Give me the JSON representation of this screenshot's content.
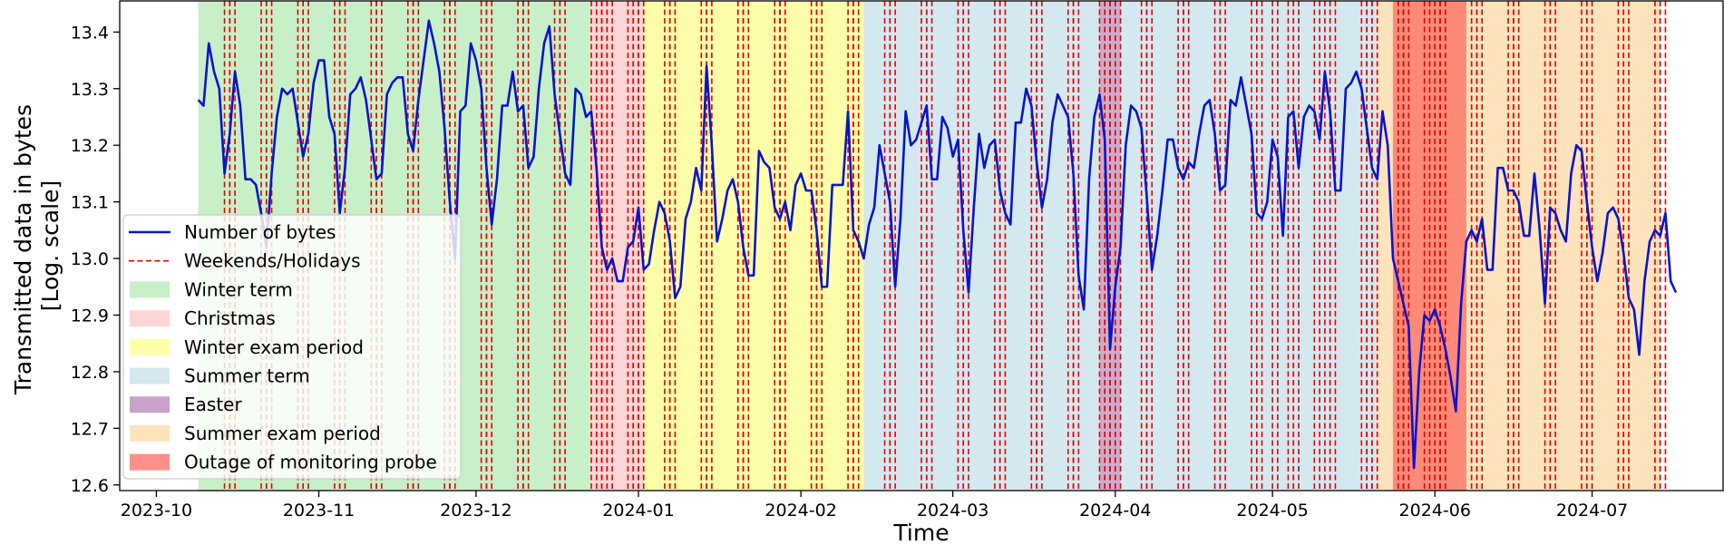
{
  "chart_data": {
    "type": "line",
    "title": "",
    "xlabel": "Time",
    "ylabel_lines": [
      "Transmitted data in bytes",
      "[Log. scale]"
    ],
    "x_range": [
      "2023-09-24",
      "2024-07-26"
    ],
    "y_range": [
      12.59,
      13.455
    ],
    "x_ticks": [
      {
        "date": "2023-10-01",
        "label": "2023-10"
      },
      {
        "date": "2023-11-01",
        "label": "2023-11"
      },
      {
        "date": "2023-12-01",
        "label": "2023-12"
      },
      {
        "date": "2024-01-01",
        "label": "2024-01"
      },
      {
        "date": "2024-02-01",
        "label": "2024-02"
      },
      {
        "date": "2024-03-01",
        "label": "2024-03"
      },
      {
        "date": "2024-04-01",
        "label": "2024-04"
      },
      {
        "date": "2024-05-01",
        "label": "2024-05"
      },
      {
        "date": "2024-06-01",
        "label": "2024-06"
      },
      {
        "date": "2024-07-01",
        "label": "2024-07"
      }
    ],
    "y_ticks": [
      {
        "value": 12.6,
        "label": "12.6"
      },
      {
        "value": 12.7,
        "label": "12.7"
      },
      {
        "value": 12.8,
        "label": "12.8"
      },
      {
        "value": 12.9,
        "label": "12.9"
      },
      {
        "value": 13.0,
        "label": "13.0"
      },
      {
        "value": 13.1,
        "label": "13.1"
      },
      {
        "value": 13.2,
        "label": "13.2"
      },
      {
        "value": 13.3,
        "label": "13.3"
      },
      {
        "value": 13.4,
        "label": "13.4"
      }
    ],
    "periods": [
      {
        "name": "Winter term",
        "start": "2023-10-09",
        "end": "2023-12-23",
        "color": "#c8f0c8",
        "opacity": 1
      },
      {
        "name": "Christmas",
        "start": "2023-12-23",
        "end": "2024-01-02",
        "color": "#ffd6d6",
        "opacity": 1
      },
      {
        "name": "Winter exam period",
        "start": "2024-01-02",
        "end": "2024-02-13",
        "color": "#ffffaa",
        "opacity": 1
      },
      {
        "name": "Summer term",
        "start": "2024-02-13",
        "end": "2024-05-21",
        "color": "#d4e8f0",
        "opacity": 1
      },
      {
        "name": "Summer exam period",
        "start": "2024-05-21",
        "end": "2024-07-14",
        "color": "#fde4bc",
        "opacity": 1
      },
      {
        "name": "Easter",
        "start": "2024-03-29",
        "end": "2024-04-02",
        "color": "#c8a2c8",
        "opacity": 0.85
      },
      {
        "name": "Outage of monitoring probe",
        "start": "2024-05-24",
        "end": "2024-06-07",
        "color": "#ff7f70",
        "opacity": 0.9
      }
    ],
    "weekend_holiday_dates": [
      "2023-10-14",
      "2023-10-15",
      "2023-10-21",
      "2023-10-22",
      "2023-10-28",
      "2023-10-29",
      "2023-11-04",
      "2023-11-05",
      "2023-11-11",
      "2023-11-12",
      "2023-11-18",
      "2023-11-19",
      "2023-11-25",
      "2023-11-26",
      "2023-12-02",
      "2023-12-03",
      "2023-12-09",
      "2023-12-10",
      "2023-12-16",
      "2023-12-17",
      "2023-12-23",
      "2023-12-24",
      "2023-12-25",
      "2023-12-26",
      "2023-12-30",
      "2023-12-31",
      "2024-01-01",
      "2024-01-06",
      "2024-01-07",
      "2024-01-13",
      "2024-01-14",
      "2024-01-20",
      "2024-01-21",
      "2024-01-27",
      "2024-01-28",
      "2024-02-03",
      "2024-02-04",
      "2024-02-10",
      "2024-02-11",
      "2024-02-17",
      "2024-02-18",
      "2024-02-24",
      "2024-02-25",
      "2024-03-02",
      "2024-03-03",
      "2024-03-09",
      "2024-03-10",
      "2024-03-16",
      "2024-03-17",
      "2024-03-23",
      "2024-03-24",
      "2024-03-29",
      "2024-03-30",
      "2024-03-31",
      "2024-04-01",
      "2024-04-06",
      "2024-04-07",
      "2024-04-13",
      "2024-04-14",
      "2024-04-20",
      "2024-04-21",
      "2024-04-27",
      "2024-04-28",
      "2024-05-01",
      "2024-05-04",
      "2024-05-05",
      "2024-05-09",
      "2024-05-11",
      "2024-05-12",
      "2024-05-18",
      "2024-05-19",
      "2024-05-20",
      "2024-05-25",
      "2024-05-26",
      "2024-05-30",
      "2024-06-01",
      "2024-06-02",
      "2024-06-08",
      "2024-06-09",
      "2024-06-15",
      "2024-06-16",
      "2024-06-22",
      "2024-06-23",
      "2024-06-29",
      "2024-06-30",
      "2024-07-06",
      "2024-07-07",
      "2024-07-13",
      "2024-07-14"
    ],
    "series": [
      {
        "name": "Number of bytes",
        "color": "#0a14c8",
        "start_date": "2023-10-09",
        "values": [
          13.28,
          13.27,
          13.38,
          13.33,
          13.3,
          13.15,
          13.22,
          13.33,
          13.27,
          13.14,
          13.14,
          13.13,
          13.08,
          13.02,
          13.15,
          13.25,
          13.3,
          13.29,
          13.3,
          13.24,
          13.18,
          13.22,
          13.31,
          13.35,
          13.35,
          13.25,
          13.22,
          13.08,
          13.16,
          13.29,
          13.3,
          13.32,
          13.28,
          13.21,
          13.14,
          13.15,
          13.29,
          13.31,
          13.32,
          13.32,
          13.22,
          13.19,
          13.28,
          13.35,
          13.42,
          13.38,
          13.33,
          13.23,
          13.1,
          13.0,
          13.26,
          13.27,
          13.38,
          13.35,
          13.3,
          13.16,
          13.06,
          13.14,
          13.27,
          13.27,
          13.33,
          13.26,
          13.27,
          13.16,
          13.18,
          13.3,
          13.38,
          13.41,
          13.29,
          13.22,
          13.15,
          13.13,
          13.3,
          13.29,
          13.25,
          13.26,
          13.16,
          13.02,
          12.98,
          13.0,
          12.96,
          12.96,
          13.02,
          13.03,
          13.09,
          12.98,
          12.99,
          13.05,
          13.1,
          13.08,
          13.03,
          12.93,
          12.95,
          13.07,
          13.1,
          13.16,
          13.12,
          13.34,
          13.2,
          13.03,
          13.07,
          13.12,
          13.14,
          13.1,
          13.02,
          12.97,
          12.97,
          13.19,
          13.17,
          13.16,
          13.09,
          13.07,
          13.1,
          13.05,
          13.13,
          13.15,
          13.12,
          13.12,
          13.05,
          12.95,
          12.95,
          13.13,
          13.13,
          13.13,
          13.26,
          13.05,
          13.03,
          13.0,
          13.06,
          13.09,
          13.2,
          13.15,
          13.1,
          12.95,
          13.07,
          13.26,
          13.2,
          13.21,
          13.24,
          13.27,
          13.14,
          13.14,
          13.25,
          13.23,
          13.18,
          13.21,
          13.05,
          12.94,
          13.09,
          13.22,
          13.16,
          13.2,
          13.21,
          13.12,
          13.08,
          13.06,
          13.24,
          13.24,
          13.3,
          13.27,
          13.17,
          13.09,
          13.14,
          13.24,
          13.29,
          13.27,
          13.25,
          13.15,
          12.97,
          12.91,
          13.14,
          13.25,
          13.29,
          13.21,
          12.84,
          12.95,
          13.02,
          13.2,
          13.27,
          13.26,
          13.23,
          13.11,
          12.98,
          13.04,
          13.12,
          13.21,
          13.21,
          13.16,
          13.14,
          13.17,
          13.16,
          13.22,
          13.27,
          13.28,
          13.22,
          13.12,
          13.13,
          13.28,
          13.27,
          13.32,
          13.27,
          13.22,
          13.08,
          13.07,
          13.1,
          13.21,
          13.18,
          13.04,
          13.25,
          13.26,
          13.16,
          13.25,
          13.27,
          13.26,
          13.21,
          13.33,
          13.26,
          13.12,
          13.12,
          13.3,
          13.31,
          13.33,
          13.3,
          13.23,
          13.16,
          13.14,
          13.26,
          13.2,
          13.0,
          12.96,
          12.92,
          12.88,
          12.63,
          12.8,
          12.9,
          12.89,
          12.91,
          12.88,
          12.84,
          12.79,
          12.73,
          12.92,
          13.03,
          13.05,
          13.03,
          13.07,
          12.98,
          12.98,
          13.16,
          13.16,
          13.12,
          13.12,
          13.1,
          13.04,
          13.04,
          13.15,
          13.05,
          12.92,
          13.09,
          13.08,
          13.05,
          13.03,
          13.15,
          13.2,
          13.19,
          13.1,
          13.02,
          12.96,
          13.01,
          13.08,
          13.09,
          13.07,
          13.01,
          12.93,
          12.91,
          12.83,
          12.96,
          13.03,
          13.05,
          13.04,
          13.08,
          12.96,
          12.94
        ]
      }
    ],
    "legend": {
      "position": "lower-left",
      "entries": [
        {
          "label": "Number of bytes",
          "kind": "line",
          "color": "#0a14c8"
        },
        {
          "label": "Weekends/Holidays",
          "kind": "dashed",
          "color": "#e00000"
        },
        {
          "label": "Winter term",
          "kind": "patch",
          "color": "#c8f0c8"
        },
        {
          "label": "Christmas",
          "kind": "patch",
          "color": "#ffd6d6"
        },
        {
          "label": "Winter exam period",
          "kind": "patch",
          "color": "#ffffaa"
        },
        {
          "label": "Summer term",
          "kind": "patch",
          "color": "#d4e8f0"
        },
        {
          "label": "Easter",
          "kind": "patch",
          "color": "#c8a2c8"
        },
        {
          "label": "Summer exam period",
          "kind": "patch",
          "color": "#fde4bc"
        },
        {
          "label": "Outage of monitoring probe",
          "kind": "patch",
          "color": "#ff8f88"
        }
      ]
    }
  }
}
